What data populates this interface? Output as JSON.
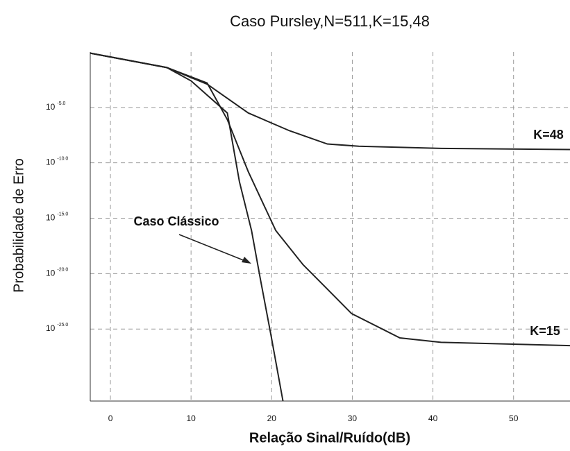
{
  "chart_data": {
    "type": "line",
    "title": "Caso Pursley,N=511,K=15,48",
    "x_label": "Relação Sinal/Ruído(dB)",
    "y_label": "Probabilidade de Erro",
    "log_scale": true,
    "grid": true,
    "xlim": [
      -2.5,
      57
    ],
    "ylim": [
      -31.5,
      0
    ],
    "xticks": [
      0,
      10,
      20,
      30,
      40,
      50
    ],
    "yticks": [
      {
        "value": -5,
        "base": "10",
        "exponent": "-5.0"
      },
      {
        "value": -10,
        "base": "10",
        "exponent": "-10.0"
      },
      {
        "value": -15,
        "base": "10",
        "exponent": "-15.0"
      },
      {
        "value": -20,
        "base": "10",
        "exponent": "-20.0"
      },
      {
        "value": -25,
        "base": "10",
        "exponent": "-25.0"
      }
    ],
    "series": [
      {
        "name": "K=48",
        "color": "#222222",
        "x": [
          -2.5,
          7,
          12,
          17.1,
          22.2,
          26.9,
          30.8,
          41,
          57
        ],
        "values": [
          -0.1,
          -1.4,
          -2.9,
          -5.5,
          -7.1,
          -8.3,
          -8.5,
          -8.7,
          -8.8
        ]
      },
      {
        "name": "K=15",
        "color": "#222222",
        "x": [
          -2.5,
          7,
          12,
          14.5,
          17.1,
          20.5,
          23.9,
          26.5,
          29.9,
          35.9,
          41,
          57
        ],
        "values": [
          -0.1,
          -1.4,
          -2.8,
          -6.1,
          -10.8,
          -16.1,
          -19.2,
          -21.1,
          -23.6,
          -25.8,
          -26.2,
          -26.5
        ]
      },
      {
        "name": "Caso Clássico",
        "color": "#222222",
        "x": [
          -2.5,
          7,
          10,
          14.5,
          16,
          17.5,
          18.6,
          19.9,
          21.4
        ],
        "values": [
          -0.1,
          -1.4,
          -2.6,
          -5.5,
          -11.7,
          -16.1,
          -20.5,
          -25.5,
          -31.5
        ]
      }
    ]
  }
}
